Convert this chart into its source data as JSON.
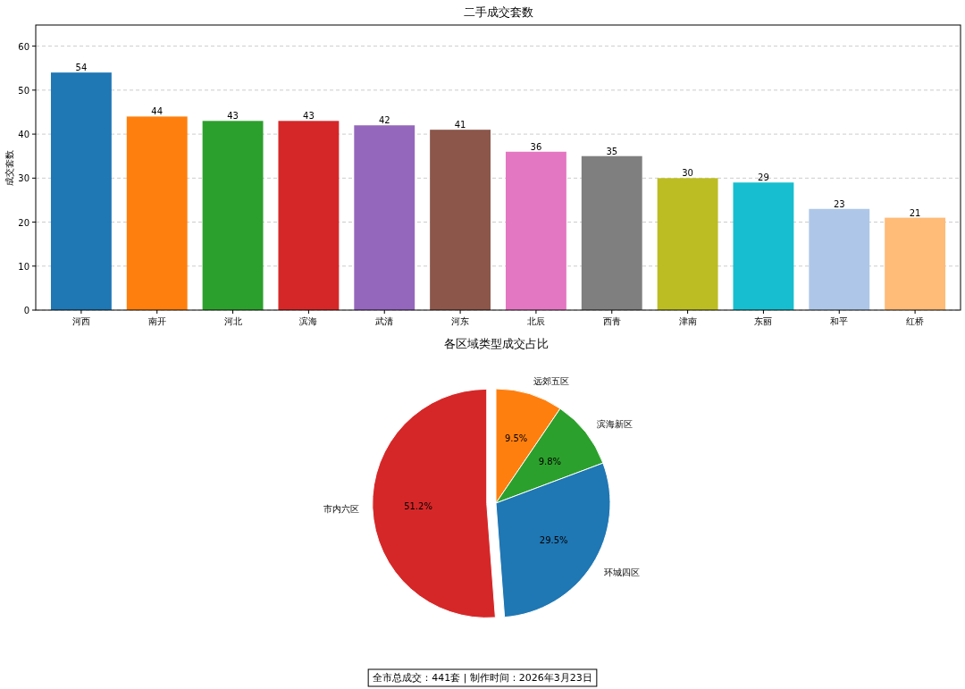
{
  "chart_data": [
    {
      "type": "bar",
      "title": "二手成交套数",
      "ylabel": "成交套数",
      "categories": [
        "河西",
        "南开",
        "河北",
        "滨海",
        "武清",
        "河东",
        "北辰",
        "西青",
        "津南",
        "东丽",
        "和平",
        "红桥"
      ],
      "values": [
        54,
        44,
        43,
        43,
        42,
        41,
        36,
        35,
        30,
        29,
        23,
        21
      ],
      "colors": [
        "#1f77b4",
        "#ff7f0e",
        "#2ca02c",
        "#d62728",
        "#9467bd",
        "#8c564b",
        "#e377c2",
        "#7f7f7f",
        "#bcbd22",
        "#17becf",
        "#aec7e8",
        "#ffbb78"
      ],
      "ylim": [
        0,
        64.8
      ],
      "yticks": [
        0,
        10,
        20,
        30,
        40,
        50,
        60
      ],
      "grid": "y",
      "data_labels": true
    },
    {
      "type": "pie",
      "title": "各区域类型成交占比",
      "categories": [
        "远郊五区",
        "滨海新区",
        "环城四区",
        "市内六区"
      ],
      "values": [
        9.5,
        9.8,
        29.5,
        51.2
      ],
      "colors": [
        "#ff7f0e",
        "#2ca02c",
        "#1f77b4",
        "#d62728"
      ],
      "value_labels": [
        "9.5%",
        "9.8%",
        "29.5%",
        "51.2%"
      ],
      "annotations": [
        "全市总成交：441套 | 制作时间：2026年3月23日"
      ]
    }
  ]
}
